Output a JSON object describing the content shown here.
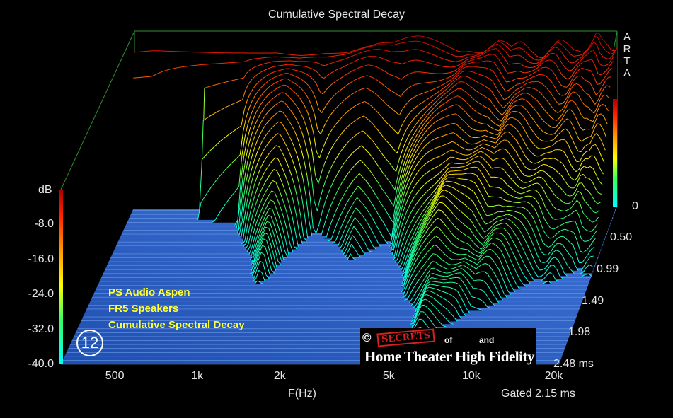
{
  "chart_data": {
    "type": "waterfall",
    "title": "Cumulative Spectral Decay",
    "xlabel": "F(Hz)",
    "ylabel": "dB",
    "x_scale": "log",
    "x_ticks": [
      {
        "label": "500",
        "value": 500
      },
      {
        "label": "1k",
        "value": 1000
      },
      {
        "label": "2k",
        "value": 2000
      },
      {
        "label": "5k",
        "value": 5000
      },
      {
        "label": "10k",
        "value": 10000
      },
      {
        "label": "20k",
        "value": 20000
      }
    ],
    "y_ticks": [
      "-8.0",
      "-16.0",
      "-24.0",
      "-32.0",
      "-40.0"
    ],
    "ylim": [
      -40,
      0
    ],
    "z_label": "ms",
    "z_ticks": [
      "0",
      "0.50",
      "0.99",
      "1.49",
      "1.98",
      "2.48 ms"
    ],
    "zlim": [
      0,
      2.48
    ],
    "gated": "Gated 2.15 ms",
    "brand": "ARTA",
    "color_scale": [
      "#00ffff",
      "#33ff66",
      "#ffff00",
      "#ff9900",
      "#ff2200",
      "#aa0000"
    ],
    "annotation": [
      "PS Audio Aspen",
      "FR5 Speakers",
      "Cumulative Spectral Decay"
    ],
    "badge": "12",
    "logo": {
      "copyright": "©",
      "secrets": "SECRETS",
      "of": "of",
      "and": "and",
      "name": "Home Theater High Fidelity"
    },
    "profile_t0": {
      "freq": [
        380,
        450,
        600,
        800,
        1000,
        1300,
        1600,
        2000,
        2400,
        2800,
        3200,
        3600,
        4000,
        4500,
        5000,
        5600,
        6300,
        7000,
        8000,
        9000,
        10000,
        11000,
        12000,
        13000,
        14000,
        15000,
        16000,
        17000,
        18000,
        19000,
        20000,
        21000,
        22000,
        23000,
        24000,
        25000
      ],
      "db": [
        -4,
        -3.5,
        -3.5,
        -3.4,
        -3.2,
        -3,
        -3.6,
        -3.5,
        -4,
        -3.6,
        -3.5,
        -4.1,
        -3.5,
        -3,
        -3.1,
        -3.2,
        -3.3,
        -2.6,
        -3.6,
        -3.1,
        -5.5,
        -3,
        -3.4,
        -4.2,
        -4.1,
        -3.7,
        -4.3,
        -4,
        -2.6,
        -3.1,
        -3.7,
        -2,
        -3.2,
        -2.2,
        -2.5,
        -3
      ]
    },
    "decay": [
      {
        "freq": 450,
        "start_db": -3.5,
        "decay_ms": 0.05
      },
      {
        "freq": 1000,
        "start_db": -3.2,
        "decay_ms": 0.2
      },
      {
        "freq": 1500,
        "start_db": -4,
        "decay_ms": 1.2
      },
      {
        "freq": 2000,
        "start_db": -3.5,
        "decay_ms": 0.3
      },
      {
        "freq": 3000,
        "start_db": -3.6,
        "decay_ms": 0.8
      },
      {
        "freq": 4000,
        "start_db": -3.5,
        "decay_ms": 0.5
      },
      {
        "freq": 7000,
        "start_db": -2.6,
        "decay_ms": 2.0
      },
      {
        "freq": 9000,
        "start_db": -3.1,
        "decay_ms": 1.8
      },
      {
        "freq": 12000,
        "start_db": -3.4,
        "decay_ms": 1.6
      },
      {
        "freq": 16000,
        "start_db": -4.3,
        "decay_ms": 1.2
      },
      {
        "freq": 22000,
        "start_db": -3.2,
        "decay_ms": 1.0
      }
    ]
  }
}
